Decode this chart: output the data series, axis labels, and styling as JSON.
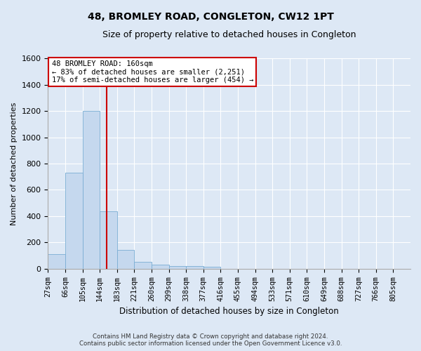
{
  "title": "48, BROMLEY ROAD, CONGLETON, CW12 1PT",
  "subtitle": "Size of property relative to detached houses in Congleton",
  "xlabel": "Distribution of detached houses by size in Congleton",
  "ylabel": "Number of detached properties",
  "footer_line1": "Contains HM Land Registry data © Crown copyright and database right 2024.",
  "footer_line2": "Contains public sector information licensed under the Open Government Licence v3.0.",
  "categories": [
    "27sqm",
    "66sqm",
    "105sqm",
    "144sqm",
    "183sqm",
    "221sqm",
    "260sqm",
    "299sqm",
    "338sqm",
    "377sqm",
    "416sqm",
    "455sqm",
    "494sqm",
    "533sqm",
    "571sqm",
    "610sqm",
    "649sqm",
    "688sqm",
    "727sqm",
    "766sqm",
    "805sqm"
  ],
  "values": [
    110,
    730,
    1200,
    435,
    145,
    55,
    30,
    20,
    20,
    15,
    0,
    0,
    0,
    0,
    0,
    0,
    0,
    0,
    0,
    0,
    0
  ],
  "bar_color": "#c5d8ee",
  "bar_edge_color": "#7aadd4",
  "highlight_label": "48 BROMLEY ROAD: 160sqm",
  "annotation_line1": "← 83% of detached houses are smaller (2,251)",
  "annotation_line2": "17% of semi-detached houses are larger (454) →",
  "annotation_box_color": "#ffffff",
  "annotation_box_edge_color": "#cc0000",
  "red_line_color": "#cc0000",
  "ylim": [
    0,
    1600
  ],
  "yticks": [
    0,
    200,
    400,
    600,
    800,
    1000,
    1200,
    1400,
    1600
  ],
  "background_color": "#dde8f5",
  "grid_color": "#ffffff",
  "title_fontsize": 10,
  "subtitle_fontsize": 9
}
